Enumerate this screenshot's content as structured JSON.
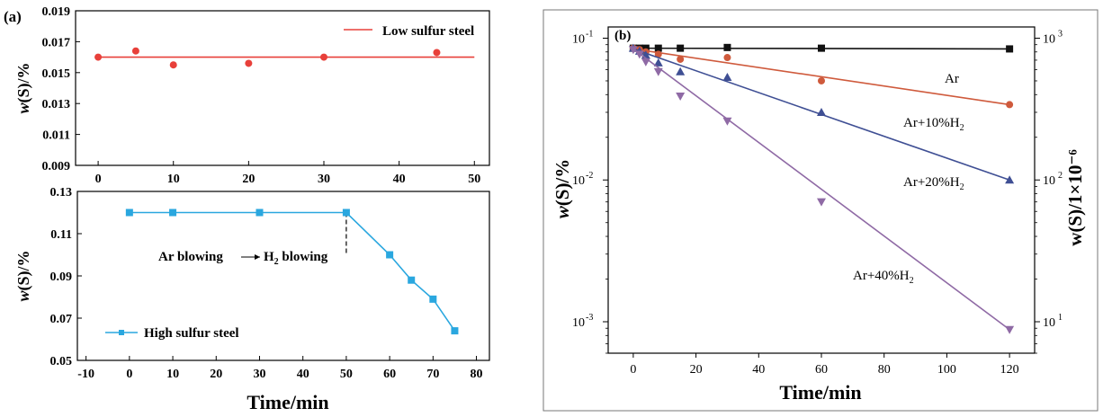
{
  "panel_labels": {
    "a": "(a)",
    "b": "(b)"
  },
  "chart_data": [
    {
      "id": "a-top",
      "type": "scatter",
      "title": "",
      "xlabel": "",
      "ylabel": {
        "main": "w",
        "rest": "(S)/%"
      },
      "xlim": [
        -3,
        52
      ],
      "ylim": [
        0.009,
        0.019
      ],
      "xticks": [
        0,
        10,
        20,
        30,
        40,
        50
      ],
      "xtick_labels": [
        "0",
        "10",
        "20",
        "30",
        "40",
        "50"
      ],
      "yticks": [
        0.009,
        0.011,
        0.013,
        0.015,
        0.017,
        0.019
      ],
      "ytick_labels": [
        "0.009",
        "0.011",
        "0.013",
        "0.015",
        "0.017",
        "0.019"
      ],
      "grid": false,
      "legend": {
        "position": "top-right",
        "entries": [
          "Low sulfur steel"
        ]
      },
      "series": [
        {
          "name": "Low sulfur steel",
          "color": "#e8403a",
          "marker": "circle",
          "x": [
            0,
            5,
            10,
            20,
            30,
            45
          ],
          "y": [
            0.016,
            0.0164,
            0.0155,
            0.0156,
            0.016,
            0.0163
          ],
          "fit_line": {
            "x": [
              0,
              50
            ],
            "y": [
              0.016,
              0.016
            ]
          }
        }
      ]
    },
    {
      "id": "a-bottom",
      "type": "line",
      "title": "",
      "xlabel": "Time/min",
      "ylabel": {
        "main": "w",
        "rest": "(S)/%"
      },
      "xlim": [
        -12,
        83
      ],
      "ylim": [
        0.05,
        0.13
      ],
      "xticks": [
        -10,
        0,
        10,
        20,
        30,
        40,
        50,
        60,
        70,
        80
      ],
      "xtick_labels": [
        "-10",
        "0",
        "10",
        "20",
        "30",
        "40",
        "50",
        "60",
        "70",
        "80"
      ],
      "yticks": [
        0.05,
        0.07,
        0.09,
        0.11,
        0.13
      ],
      "ytick_labels": [
        "0.05",
        "0.07",
        "0.09",
        "0.11",
        "0.13"
      ],
      "grid": false,
      "legend": {
        "position": "bottom-left",
        "entries": [
          "High sulfur steel"
        ]
      },
      "annotation": {
        "left": "Ar blowing",
        "right_main": "H",
        "right_sub": "2",
        "right_rest": " blowing",
        "divider_x": 50
      },
      "series": [
        {
          "name": "High sulfur steel",
          "color": "#2aa7df",
          "marker": "square",
          "x": [
            0,
            10,
            30,
            50,
            60,
            65,
            70,
            75
          ],
          "y": [
            0.12,
            0.12,
            0.12,
            0.12,
            0.1,
            0.088,
            0.079,
            0.064
          ]
        }
      ]
    },
    {
      "id": "b",
      "type": "scatter",
      "title": "",
      "xlabel": "Time/min",
      "ylabel": {
        "main": "w",
        "rest": "(S)/%"
      },
      "ylabel_right": "w(S)/1×10⁻⁶",
      "y_scale": "log",
      "xlim": [
        -8,
        128
      ],
      "ylim": [
        0.0006,
        0.12
      ],
      "xticks": [
        0,
        20,
        40,
        60,
        80,
        100,
        120
      ],
      "xtick_labels": [
        "0",
        "20",
        "40",
        "60",
        "80",
        "100",
        "120"
      ],
      "yticks": [
        0.001,
        0.01,
        0.1
      ],
      "ytick_labels": [
        {
          "base": "10",
          "exp": "-3"
        },
        {
          "base": "10",
          "exp": "-2"
        },
        {
          "base": "10",
          "exp": "-1"
        }
      ],
      "yticks_right": [
        0.001,
        0.01,
        0.1
      ],
      "ytick_labels_right": [
        {
          "base": "10",
          "exp": "1"
        },
        {
          "base": "10",
          "exp": "2"
        },
        {
          "base": "10",
          "exp": "3"
        }
      ],
      "grid": false,
      "series": [
        {
          "name": "Ar",
          "label": {
            "main": "Ar",
            "sub": ""
          },
          "color": "#111111",
          "marker": "square",
          "x": [
            0,
            2,
            4,
            8,
            15,
            30,
            60,
            120
          ],
          "y": [
            0.085,
            0.085,
            0.085,
            0.085,
            0.085,
            0.086,
            0.085,
            0.084
          ],
          "fit": [
            0.085,
            0.084
          ]
        },
        {
          "name": "Ar+10%H2",
          "label": {
            "main": "Ar+10%H",
            "sub": "2"
          },
          "color": "#cf5a3c",
          "marker": "circle",
          "x": [
            0,
            2,
            4,
            8,
            15,
            30,
            60,
            120
          ],
          "y": [
            0.085,
            0.083,
            0.08,
            0.077,
            0.071,
            0.073,
            0.05,
            0.034
          ],
          "fit": [
            0.084,
            0.034
          ]
        },
        {
          "name": "Ar+20%H2",
          "label": {
            "main": "Ar+20%H",
            "sub": "2"
          },
          "color": "#3f4f94",
          "marker": "triangle-up",
          "x": [
            0,
            2,
            4,
            8,
            15,
            30,
            60,
            120
          ],
          "y": [
            0.085,
            0.081,
            0.076,
            0.067,
            0.058,
            0.053,
            0.03,
            0.01
          ],
          "fit": [
            0.084,
            0.01
          ]
        },
        {
          "name": "Ar+40%H2",
          "label": {
            "main": "Ar+40%H",
            "sub": "2"
          },
          "color": "#8f6aa5",
          "marker": "triangle-down",
          "x": [
            0,
            2,
            4,
            8,
            15,
            30,
            60,
            120
          ],
          "y": [
            0.083,
            0.077,
            0.068,
            0.058,
            0.039,
            0.026,
            0.007,
            0.00088
          ],
          "fit": [
            0.084,
            0.00088
          ]
        }
      ]
    }
  ]
}
